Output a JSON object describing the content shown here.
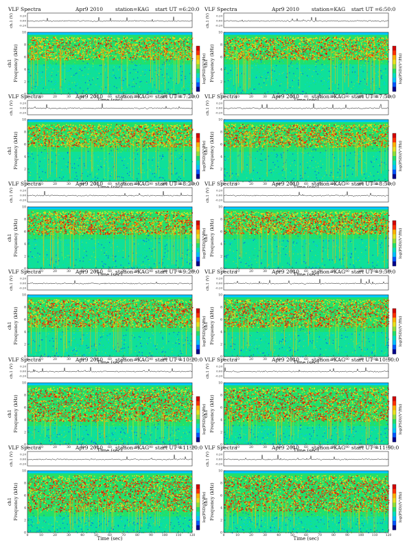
{
  "colors": {
    "background": "#ffffff",
    "spectrogram_levels": [
      "#00008b",
      "#0055ff",
      "#00bfff",
      "#00e0c0",
      "#22e06a",
      "#8ee03a",
      "#e8e020",
      "#ffb000",
      "#ff3000",
      "#d40000"
    ]
  },
  "chart_data": [
    {
      "type": "heatmap",
      "title": "VLF Spectra",
      "date": "Apr9 2010",
      "station": "station=KAG",
      "start": "start UT =6:20:0",
      "xlabel": "Time (sec)",
      "ylabel": "Frequency (kHz)",
      "channel_label": "ch1",
      "amp_label": "ch.1 (V)",
      "colorbar_label": "log(PSD)(V²/Hz)",
      "x_ticks": [
        "0",
        "10",
        "20",
        "30",
        "40",
        "50",
        "60",
        "70",
        "80",
        "90",
        "100",
        "110",
        "120"
      ],
      "y_ticks": [
        "0",
        "2",
        "4",
        "6",
        "8",
        "10"
      ],
      "amp_ticks": [
        "0.20",
        "0.00",
        "-0.20"
      ],
      "xlim": [
        0,
        120
      ],
      "ylim": [
        0,
        10
      ],
      "band_lower_khz": 6.0,
      "band_upper_khz": 9.3,
      "intensity": 0.3
    },
    {
      "type": "heatmap",
      "title": "VLF Spectra",
      "date": "Apr9 2010",
      "station": "station=KAG",
      "start": "start UT =6:50:0",
      "xlabel": "Time (sec)",
      "ylabel": "Frequency (kHz)",
      "channel_label": "ch1",
      "amp_label": "ch.1 (V)",
      "colorbar_label": "log(PSD)(V²/Hz)",
      "x_ticks": [
        "0",
        "10",
        "20",
        "30",
        "40",
        "50",
        "60",
        "70",
        "80",
        "90",
        "100",
        "110",
        "120"
      ],
      "y_ticks": [
        "0",
        "2",
        "4",
        "6",
        "8",
        "10"
      ],
      "amp_ticks": [
        "0.20",
        "0.00",
        "-0.20"
      ],
      "xlim": [
        0,
        120
      ],
      "ylim": [
        0,
        10
      ],
      "band_lower_khz": 6.0,
      "band_upper_khz": 9.3,
      "intensity": 0.4
    },
    {
      "type": "heatmap",
      "title": "VLF Spectra",
      "date": "Apr9 2010",
      "station": "station=KAG",
      "start": "start UT =7:20:0",
      "xlabel": "Time (sec)",
      "ylabel": "Frequency (kHz)",
      "channel_label": "ch1",
      "amp_label": "ch.1 (V)",
      "colorbar_label": "log(PSD)(V²/Hz)",
      "x_ticks": [
        "0",
        "10",
        "20",
        "30",
        "40",
        "50",
        "60",
        "70",
        "80",
        "90",
        "100",
        "110",
        "120"
      ],
      "y_ticks": [
        "0",
        "2",
        "4",
        "6",
        "8",
        "10"
      ],
      "amp_ticks": [
        "0.20",
        "0.00",
        "-0.20"
      ],
      "xlim": [
        0,
        120
      ],
      "ylim": [
        0,
        10
      ],
      "band_lower_khz": 6.0,
      "band_upper_khz": 9.3,
      "intensity": 0.4
    },
    {
      "type": "heatmap",
      "title": "VLF Spectra",
      "date": "Apr9 2010",
      "station": "station=KAG",
      "start": "start UT =7:50:0",
      "xlabel": "Time (sec)",
      "ylabel": "Frequency (kHz)",
      "channel_label": "ch1",
      "amp_label": "ch.1 (V)",
      "colorbar_label": "log(PSD)(V²/Hz)",
      "x_ticks": [
        "0",
        "10",
        "20",
        "30",
        "40",
        "50",
        "60",
        "70",
        "80",
        "90",
        "100",
        "110",
        "120"
      ],
      "y_ticks": [
        "0",
        "2",
        "4",
        "6",
        "8",
        "10"
      ],
      "amp_ticks": [
        "0.20",
        "0.00",
        "-0.20"
      ],
      "xlim": [
        0,
        120
      ],
      "ylim": [
        0,
        10
      ],
      "band_lower_khz": 6.0,
      "band_upper_khz": 9.3,
      "intensity": 0.45
    },
    {
      "type": "heatmap",
      "title": "VLF Spectra",
      "date": "Apr9 2010",
      "station": "station=KAG",
      "start": "start UT =8:20:0",
      "xlabel": "Time (sec)",
      "ylabel": "Frequency (kHz)",
      "channel_label": "ch1",
      "amp_label": "ch.1 (V)",
      "colorbar_label": "log(PSD)(V²/Hz)",
      "x_ticks": [
        "0",
        "10",
        "20",
        "30",
        "40",
        "50",
        "60",
        "70",
        "80",
        "90",
        "100",
        "110",
        "120"
      ],
      "y_ticks": [
        "0",
        "2",
        "4",
        "6",
        "8",
        "10"
      ],
      "amp_ticks": [
        "0.20",
        "0.00",
        "-0.20"
      ],
      "xlim": [
        0,
        120
      ],
      "ylim": [
        0,
        10
      ],
      "band_lower_khz": 6.0,
      "band_upper_khz": 9.3,
      "intensity": 0.55
    },
    {
      "type": "heatmap",
      "title": "VLF Spectra",
      "date": "Apr9 2010",
      "station": "station=KAG",
      "start": "start UT =8:50:0",
      "xlabel": "Time (sec)",
      "ylabel": "Frequency (kHz)",
      "channel_label": "ch1",
      "amp_label": "ch.1 (V)",
      "colorbar_label": "log(PSD)(V²/Hz)",
      "x_ticks": [
        "0",
        "10",
        "20",
        "30",
        "40",
        "50",
        "60",
        "70",
        "80",
        "90",
        "100",
        "110",
        "120"
      ],
      "y_ticks": [
        "0",
        "2",
        "4",
        "6",
        "8",
        "10"
      ],
      "amp_ticks": [
        "0.20",
        "0.00",
        "-0.20"
      ],
      "xlim": [
        0,
        120
      ],
      "ylim": [
        0,
        10
      ],
      "band_lower_khz": 6.0,
      "band_upper_khz": 9.3,
      "intensity": 0.55
    },
    {
      "type": "heatmap",
      "title": "VLF Spectra",
      "date": "Apr9 2010",
      "station": "station=KAG",
      "start": "start UT =9:20:0",
      "xlabel": "Time (sec)",
      "ylabel": "Frequency (kHz)",
      "channel_label": "ch1",
      "amp_label": "ch.1 (V)",
      "colorbar_label": "log(PSD)(V²/Hz)",
      "x_ticks": [
        "0",
        "10",
        "20",
        "30",
        "40",
        "50",
        "60",
        "70",
        "80",
        "90",
        "100",
        "110",
        "120"
      ],
      "y_ticks": [
        "0",
        "2",
        "4",
        "6",
        "8",
        "10"
      ],
      "amp_ticks": [
        "0.20",
        "0.00",
        "-0.20"
      ],
      "xlim": [
        0,
        120
      ],
      "ylim": [
        0,
        10
      ],
      "band_lower_khz": 5.2,
      "band_upper_khz": 9.3,
      "intensity": 0.7
    },
    {
      "type": "heatmap",
      "title": "VLF Spectra",
      "date": "Apr9 2010",
      "station": "station=KAG",
      "start": "start UT =9:50:0",
      "xlabel": "Time (sec)",
      "ylabel": "Frequency (kHz)",
      "channel_label": "ch1",
      "amp_label": "ch.1 (V)",
      "colorbar_label": "log(PSD)(V²/Hz)",
      "x_ticks": [
        "0",
        "10",
        "20",
        "30",
        "40",
        "50",
        "60",
        "70",
        "80",
        "90",
        "100",
        "110",
        "120"
      ],
      "y_ticks": [
        "0",
        "2",
        "4",
        "6",
        "8",
        "10"
      ],
      "amp_ticks": [
        "0.20",
        "0.00",
        "-0.20"
      ],
      "xlim": [
        0,
        120
      ],
      "ylim": [
        0,
        10
      ],
      "band_lower_khz": 5.2,
      "band_upper_khz": 9.3,
      "intensity": 0.75
    },
    {
      "type": "heatmap",
      "title": "VLF Spectra",
      "date": "Apr9 2010",
      "station": "station=KAG",
      "start": "start UT =10:20:0",
      "xlabel": "Time (sec)",
      "ylabel": "Frequency (kHz)",
      "channel_label": "ch1",
      "amp_label": "ch.1 (V)",
      "colorbar_label": "log(PSD)(V²/Hz)",
      "x_ticks": [
        "0",
        "10",
        "20",
        "30",
        "40",
        "50",
        "60",
        "70",
        "80",
        "90",
        "100",
        "110",
        "120"
      ],
      "y_ticks": [
        "0",
        "2",
        "4",
        "6",
        "8",
        "10"
      ],
      "amp_ticks": [
        "0.20",
        "0.00",
        "-0.20"
      ],
      "xlim": [
        0,
        120
      ],
      "ylim": [
        0,
        10
      ],
      "band_lower_khz": 4.2,
      "band_upper_khz": 9.3,
      "intensity": 0.8
    },
    {
      "type": "heatmap",
      "title": "VLF Spectra",
      "date": "Apr9 2010",
      "station": "station=KAG",
      "start": "start UT =10:50:0",
      "xlabel": "Time (sec)",
      "ylabel": "Frequency (kHz)",
      "channel_label": "ch1",
      "amp_label": "ch.1 (V)",
      "colorbar_label": "log(PSD)(V²/Hz)",
      "x_ticks": [
        "0",
        "10",
        "20",
        "30",
        "40",
        "50",
        "60",
        "70",
        "80",
        "90",
        "100",
        "110",
        "120"
      ],
      "y_ticks": [
        "0",
        "2",
        "4",
        "6",
        "8",
        "10"
      ],
      "amp_ticks": [
        "0.20",
        "0.00",
        "-0.20"
      ],
      "xlim": [
        0,
        120
      ],
      "ylim": [
        0,
        10
      ],
      "band_lower_khz": 4.2,
      "band_upper_khz": 9.3,
      "intensity": 0.8
    },
    {
      "type": "heatmap",
      "title": "VLF Spectra",
      "date": "Apr9 2010",
      "station": "station=KAG",
      "start": "start UT =11:20:0",
      "xlabel": "Time (sec)",
      "ylabel": "Frequency (kHz)",
      "channel_label": "ch1",
      "amp_label": "ch.1 (V)",
      "colorbar_label": "log(PSD)(V²/Hz)",
      "x_ticks": [
        "0",
        "10",
        "20",
        "30",
        "40",
        "50",
        "60",
        "70",
        "80",
        "90",
        "100",
        "110",
        "120"
      ],
      "y_ticks": [
        "0",
        "2",
        "4",
        "6",
        "8",
        "10"
      ],
      "amp_ticks": [
        "0.20",
        "0.00",
        "-0.20"
      ],
      "xlim": [
        0,
        120
      ],
      "ylim": [
        0,
        10
      ],
      "band_lower_khz": 3.8,
      "band_upper_khz": 9.3,
      "intensity": 0.9
    },
    {
      "type": "heatmap",
      "title": "VLF Spectra",
      "date": "Apr9 2010",
      "station": "station=KAG",
      "start": "start UT =11:50:0",
      "xlabel": "Time (sec)",
      "ylabel": "Frequency (kHz)",
      "channel_label": "ch1",
      "amp_label": "ch.1 (V)",
      "colorbar_label": "log(PSD)(V²/Hz)",
      "x_ticks": [
        "0",
        "10",
        "20",
        "30",
        "40",
        "50",
        "60",
        "70",
        "80",
        "90",
        "100",
        "110",
        "120"
      ],
      "y_ticks": [
        "0",
        "2",
        "4",
        "6",
        "8",
        "10"
      ],
      "amp_ticks": [
        "0.20",
        "0.00",
        "-0.20"
      ],
      "xlim": [
        0,
        120
      ],
      "ylim": [
        0,
        10
      ],
      "band_lower_khz": 3.8,
      "band_upper_khz": 9.3,
      "intensity": 0.9
    }
  ]
}
